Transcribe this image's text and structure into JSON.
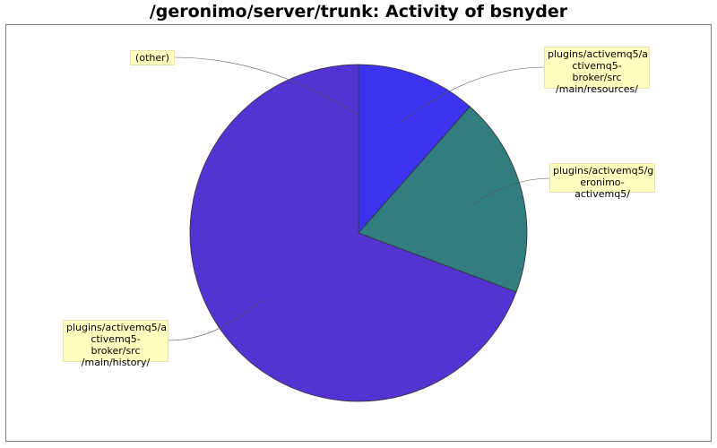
{
  "chart_data": {
    "type": "pie",
    "title": "/geronimo/server/trunk: Activity of bsnyder",
    "slices": [
      {
        "label": "plugins/activemq5/activemq5-broker/src/main/resources/",
        "display_lines": [
          "plugins/activemq5/a",
          "ctivemq5-broker/src",
          "/main/resources/"
        ],
        "value": 11.5,
        "color": "#3c33f0"
      },
      {
        "label": "plugins/activemq5/geronimo-activemq5/",
        "display_lines": [
          "plugins/activemq5/g",
          "eronimo-activemq5/"
        ],
        "value": 19.2,
        "color": "#327d80"
      },
      {
        "label": "plugins/activemq5/activemq5-broker/src/main/history/",
        "display_lines": [
          "plugins/activemq5/a",
          "ctivemq5-broker/src",
          "/main/history/"
        ],
        "value": 69.3,
        "color": "#5433d3"
      },
      {
        "label": "(other)",
        "display_lines": [
          "(other)"
        ],
        "value": 0.0,
        "color": "#9a9a9a"
      }
    ],
    "grid": false,
    "legend": "none"
  }
}
